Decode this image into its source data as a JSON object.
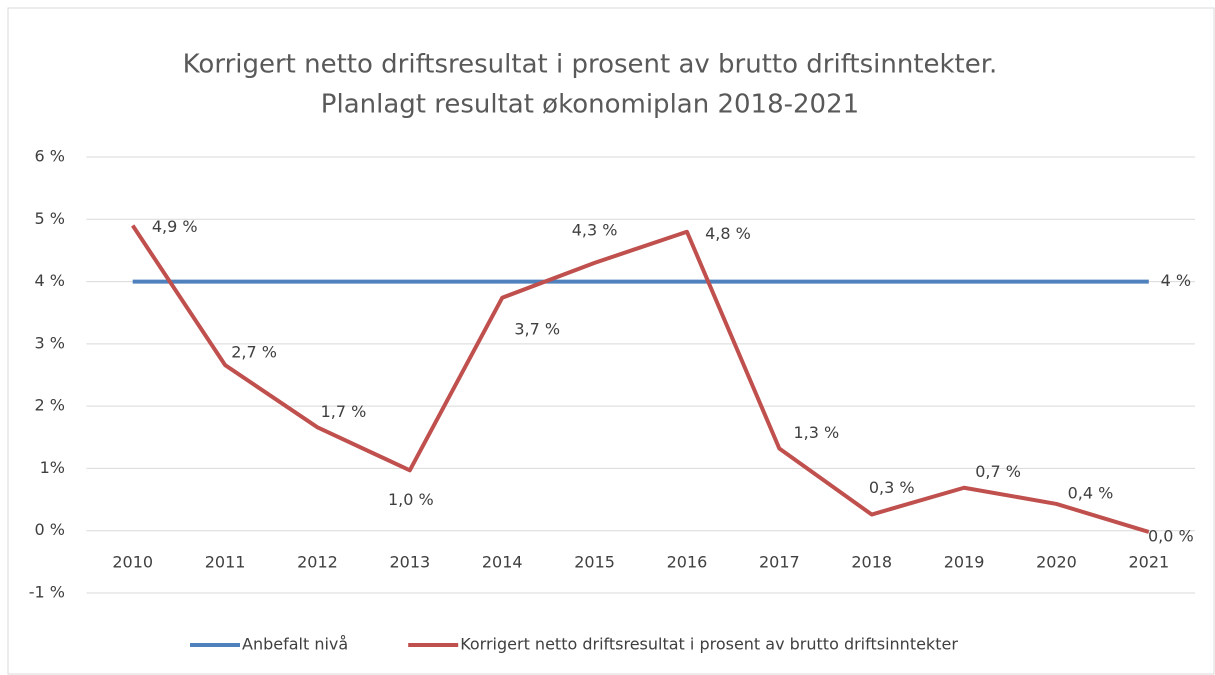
{
  "chart_data": {
    "type": "line",
    "title": [
      "Korrigert netto driftsresultat i prosent av brutto driftsinntekter.",
      "Planlagt resultat  økonomiplan 2018-2021"
    ],
    "categories": [
      "2010",
      "2011",
      "2012",
      "2013",
      "2014",
      "2015",
      "2016",
      "2017",
      "2018",
      "2019",
      "2020",
      "2021"
    ],
    "series": [
      {
        "name": "Anbefalt nivå",
        "color": "#4f81bd",
        "values": [
          4,
          4,
          4,
          4,
          4,
          4,
          4,
          4,
          4,
          4,
          4,
          4
        ],
        "value_labels": [
          null,
          null,
          null,
          null,
          null,
          null,
          null,
          null,
          null,
          null,
          null,
          "4 %"
        ]
      },
      {
        "name": "Korrigert netto driftsresultat i prosent av brutto driftsinntekter",
        "color": "#c0504d",
        "values": [
          4.9,
          2.66,
          1.66,
          0.97,
          3.74,
          4.3,
          4.8,
          1.32,
          0.26,
          0.69,
          0.43,
          -0.02
        ],
        "value_labels": [
          "4,9 %",
          "2,7 %",
          "1,7 %",
          "1,0 %",
          "3,7 %",
          "4,3 %",
          "4,8 %",
          "1,3 %",
          "0,3 %",
          "0,7 %",
          "0,4 %",
          "0,0 %"
        ]
      }
    ],
    "ylim": [
      -1,
      6
    ],
    "yticks": [
      {
        "value": -1,
        "label": "-1 %"
      },
      {
        "value": 0,
        "label": "0 %"
      },
      {
        "value": 1,
        "label": "1%"
      },
      {
        "value": 2,
        "label": "2 %"
      },
      {
        "value": 3,
        "label": "3 %"
      },
      {
        "value": 4,
        "label": "4 %"
      },
      {
        "value": 5,
        "label": "5 %"
      },
      {
        "value": 6,
        "label": "6 %"
      }
    ],
    "grid": true,
    "legend": "bottom"
  }
}
